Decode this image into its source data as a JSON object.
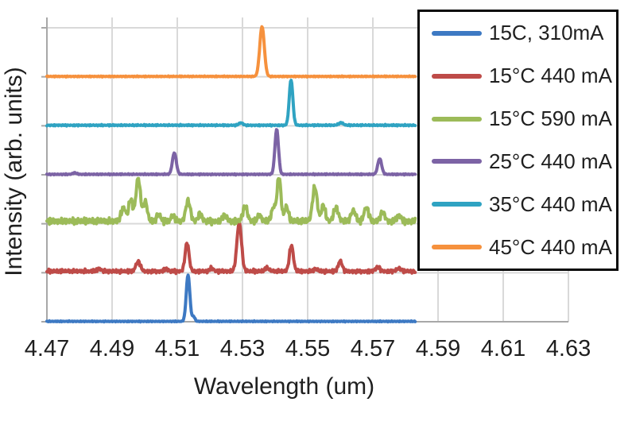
{
  "chart_data": {
    "type": "line",
    "title": "",
    "xlabel": "Wavelength (um)",
    "ylabel": "Intensity (arb. units)",
    "xlim": [
      4.47,
      4.63
    ],
    "x_ticks": [
      "4.47",
      "4.49",
      "4.51",
      "4.53",
      "4.55",
      "4.57",
      "4.59",
      "4.61",
      "4.63"
    ],
    "x_tick_values": [
      4.47,
      4.49,
      4.51,
      4.53,
      4.55,
      4.57,
      4.59,
      4.61,
      4.63
    ],
    "x_data_end": 4.583,
    "grid": true,
    "gridline_color": "#d9d9d9",
    "axis_color": "#a8a8a8",
    "text_color": "#1f1f1f",
    "legend_position": "upper right",
    "legend_border_color": "#0a0a0a",
    "y_axis_note": "arbitrary units; six traces vertically offset by one gridline unit each, no numeric y labels",
    "series": [
      {
        "name": "15C, 310mA",
        "color": "#3d79c3",
        "offset": 0,
        "noise": 0.012,
        "seed": 1,
        "peaks": [
          {
            "x": 4.5133,
            "h": 0.95,
            "w": 0.00055
          },
          {
            "x": 4.515,
            "h": 0.1,
            "w": 0.0004
          }
        ]
      },
      {
        "name": "15°C 440 mA",
        "color": "#be4b48",
        "offset": 1,
        "noise": 0.05,
        "seed": 2,
        "peaks": [
          {
            "x": 4.486,
            "h": 0.05,
            "w": 0.0006
          },
          {
            "x": 4.498,
            "h": 0.2,
            "w": 0.0007
          },
          {
            "x": 4.5065,
            "h": 0.05,
            "w": 0.0006
          },
          {
            "x": 4.513,
            "h": 0.58,
            "w": 0.0006
          },
          {
            "x": 4.5205,
            "h": 0.06,
            "w": 0.0006
          },
          {
            "x": 4.529,
            "h": 1.0,
            "w": 0.0007
          },
          {
            "x": 4.5375,
            "h": 0.07,
            "w": 0.0006
          },
          {
            "x": 4.545,
            "h": 0.53,
            "w": 0.0006
          },
          {
            "x": 4.5525,
            "h": 0.05,
            "w": 0.0006
          },
          {
            "x": 4.56,
            "h": 0.21,
            "w": 0.0006
          },
          {
            "x": 4.5715,
            "h": 0.08,
            "w": 0.0007
          },
          {
            "x": 4.578,
            "h": 0.06,
            "w": 0.0007
          }
        ]
      },
      {
        "name": "15°C 590 mA",
        "color": "#9cbb59",
        "offset": 2,
        "noise": 0.085,
        "seed": 3,
        "peaks": [
          {
            "x": 4.4935,
            "h": 0.28,
            "w": 0.0007
          },
          {
            "x": 4.4957,
            "h": 0.45,
            "w": 0.0006
          },
          {
            "x": 4.498,
            "h": 0.88,
            "w": 0.0007
          },
          {
            "x": 4.5002,
            "h": 0.4,
            "w": 0.0006
          },
          {
            "x": 4.5043,
            "h": 0.15,
            "w": 0.0006
          },
          {
            "x": 4.5087,
            "h": 0.12,
            "w": 0.0006
          },
          {
            "x": 4.5133,
            "h": 0.42,
            "w": 0.0007
          },
          {
            "x": 4.517,
            "h": 0.15,
            "w": 0.0006
          },
          {
            "x": 4.5245,
            "h": 0.12,
            "w": 0.0007
          },
          {
            "x": 4.5308,
            "h": 0.3,
            "w": 0.0007
          },
          {
            "x": 4.5352,
            "h": 0.12,
            "w": 0.0006
          },
          {
            "x": 4.5395,
            "h": 0.28,
            "w": 0.0006
          },
          {
            "x": 4.5412,
            "h": 0.9,
            "w": 0.0006
          },
          {
            "x": 4.5435,
            "h": 0.3,
            "w": 0.0006
          },
          {
            "x": 4.5522,
            "h": 0.7,
            "w": 0.0007
          },
          {
            "x": 4.5548,
            "h": 0.33,
            "w": 0.0006
          },
          {
            "x": 4.5587,
            "h": 0.28,
            "w": 0.0007
          },
          {
            "x": 4.564,
            "h": 0.22,
            "w": 0.0007
          },
          {
            "x": 4.568,
            "h": 0.28,
            "w": 0.0007
          },
          {
            "x": 4.573,
            "h": 0.18,
            "w": 0.0007
          },
          {
            "x": 4.578,
            "h": 0.12,
            "w": 0.0007
          }
        ]
      },
      {
        "name": "25°C 440 mA",
        "color": "#7c63a5",
        "offset": 3,
        "noise": 0.015,
        "seed": 4,
        "peaks": [
          {
            "x": 4.4785,
            "h": 0.03,
            "w": 0.0006
          },
          {
            "x": 4.5091,
            "h": 0.44,
            "w": 0.0006
          },
          {
            "x": 4.5405,
            "h": 0.92,
            "w": 0.00055
          },
          {
            "x": 4.5721,
            "h": 0.32,
            "w": 0.0006
          }
        ]
      },
      {
        "name": "35°C 440 mA",
        "color": "#2fa3c2",
        "offset": 4,
        "noise": 0.018,
        "seed": 5,
        "peaks": [
          {
            "x": 4.5295,
            "h": 0.05,
            "w": 0.0006
          },
          {
            "x": 4.5449,
            "h": 0.93,
            "w": 0.00055
          },
          {
            "x": 4.5602,
            "h": 0.05,
            "w": 0.0007
          }
        ]
      },
      {
        "name": "45°C 440 mA",
        "color": "#f6913d",
        "offset": 5,
        "noise": 0.012,
        "seed": 6,
        "peaks": [
          {
            "x": 4.536,
            "h": 1.02,
            "w": 0.0007
          }
        ]
      }
    ]
  }
}
